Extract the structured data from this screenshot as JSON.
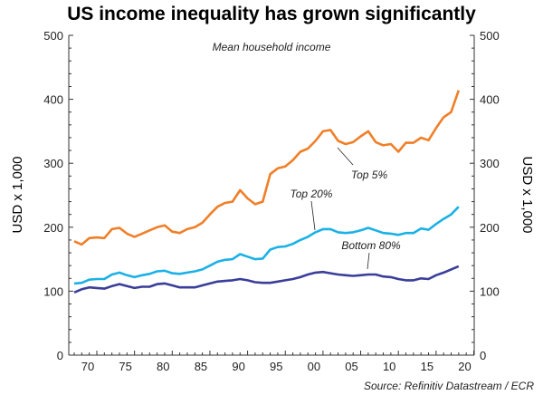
{
  "chart_data": {
    "type": "line",
    "title": "US income inequality has grown significantly",
    "subtitle": "Mean household income",
    "ylabel": "USD x 1,000",
    "ylabel_right": "USD x 1,000",
    "xlabel": "",
    "source": "Source: Refinitiv Datastream / ECR",
    "ylim": [
      0,
      500
    ],
    "yticks": [
      "0",
      "100",
      "200",
      "300",
      "400",
      "500"
    ],
    "xticks": [
      "70",
      "75",
      "80",
      "85",
      "90",
      "95",
      "00",
      "05",
      "10",
      "15",
      "20"
    ],
    "xtick_years": [
      1970,
      1975,
      1980,
      1985,
      1990,
      1995,
      2000,
      2005,
      2010,
      2015,
      2020
    ],
    "xlim": [
      1966,
      2020.5
    ],
    "grid": false,
    "x_start": 1967,
    "series": [
      {
        "name": "Top 5%",
        "color": "#F07F28",
        "values": [
          178,
          173,
          183,
          184,
          183,
          197,
          199,
          190,
          185,
          190,
          195,
          200,
          203,
          193,
          191,
          197,
          200,
          207,
          220,
          232,
          238,
          240,
          258,
          245,
          236,
          240,
          283,
          292,
          295,
          305,
          318,
          323,
          335,
          350,
          352,
          335,
          330,
          333,
          342,
          350,
          333,
          328,
          330,
          318,
          332,
          332,
          340,
          336,
          355,
          372,
          380,
          414
        ]
      },
      {
        "name": "Top 20%",
        "color": "#1BB1E6",
        "values": [
          112,
          113,
          118,
          119,
          119,
          126,
          129,
          125,
          122,
          125,
          127,
          131,
          132,
          128,
          127,
          129,
          131,
          134,
          140,
          146,
          149,
          150,
          158,
          154,
          150,
          151,
          165,
          169,
          170,
          174,
          180,
          185,
          192,
          197,
          197,
          192,
          191,
          192,
          195,
          199,
          195,
          191,
          190,
          188,
          191,
          191,
          198,
          196,
          205,
          213,
          220,
          232
        ]
      },
      {
        "name": "Bottom 80%",
        "color": "#3A3E9A",
        "values": [
          98,
          103,
          106,
          105,
          104,
          108,
          111,
          108,
          105,
          107,
          107,
          111,
          112,
          109,
          106,
          106,
          106,
          109,
          112,
          115,
          116,
          117,
          119,
          117,
          114,
          113,
          113,
          115,
          117,
          119,
          122,
          126,
          129,
          130,
          128,
          126,
          125,
          124,
          125,
          126,
          126,
          123,
          122,
          119,
          117,
          117,
          120,
          119,
          125,
          129,
          134,
          139
        ]
      }
    ]
  }
}
